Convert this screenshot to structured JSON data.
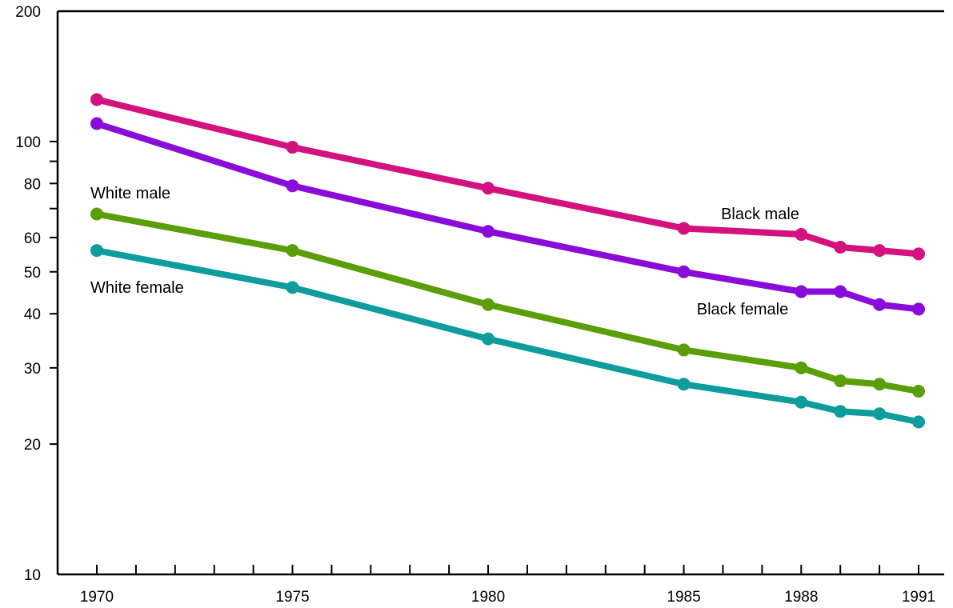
{
  "chart_data": {
    "type": "line",
    "title": "",
    "xlabel": "",
    "ylabel": "",
    "y_scale": "log",
    "ylim": [
      10,
      200
    ],
    "xlim": [
      1970,
      1991
    ],
    "x": [
      1970,
      1975,
      1980,
      1985,
      1988,
      1989,
      1990,
      1991
    ],
    "x_tick_labels": [
      "1970",
      "1975",
      "1980",
      "1985",
      "1988",
      "1991"
    ],
    "y_tick_labels": [
      "10",
      "20",
      "30",
      "40",
      "50",
      "60",
      "80",
      "100",
      "200"
    ],
    "grid": false,
    "legend": "none",
    "series": [
      {
        "name": "Black male",
        "color": "#d4127f",
        "values": [
          125,
          97,
          78,
          63,
          61,
          57,
          56,
          55
        ]
      },
      {
        "name": "Black female",
        "color": "#8a0cd8",
        "values": [
          110,
          79,
          62,
          50,
          45,
          45,
          42,
          41
        ]
      },
      {
        "name": "White male",
        "color": "#5a9e0a",
        "values": [
          68,
          56,
          42,
          33,
          30,
          28,
          27.5,
          26.5
        ]
      },
      {
        "name": "White female",
        "color": "#0e9c9c",
        "values": [
          56,
          46,
          35,
          27.5,
          25,
          23.8,
          23.5,
          22.5
        ]
      }
    ]
  }
}
